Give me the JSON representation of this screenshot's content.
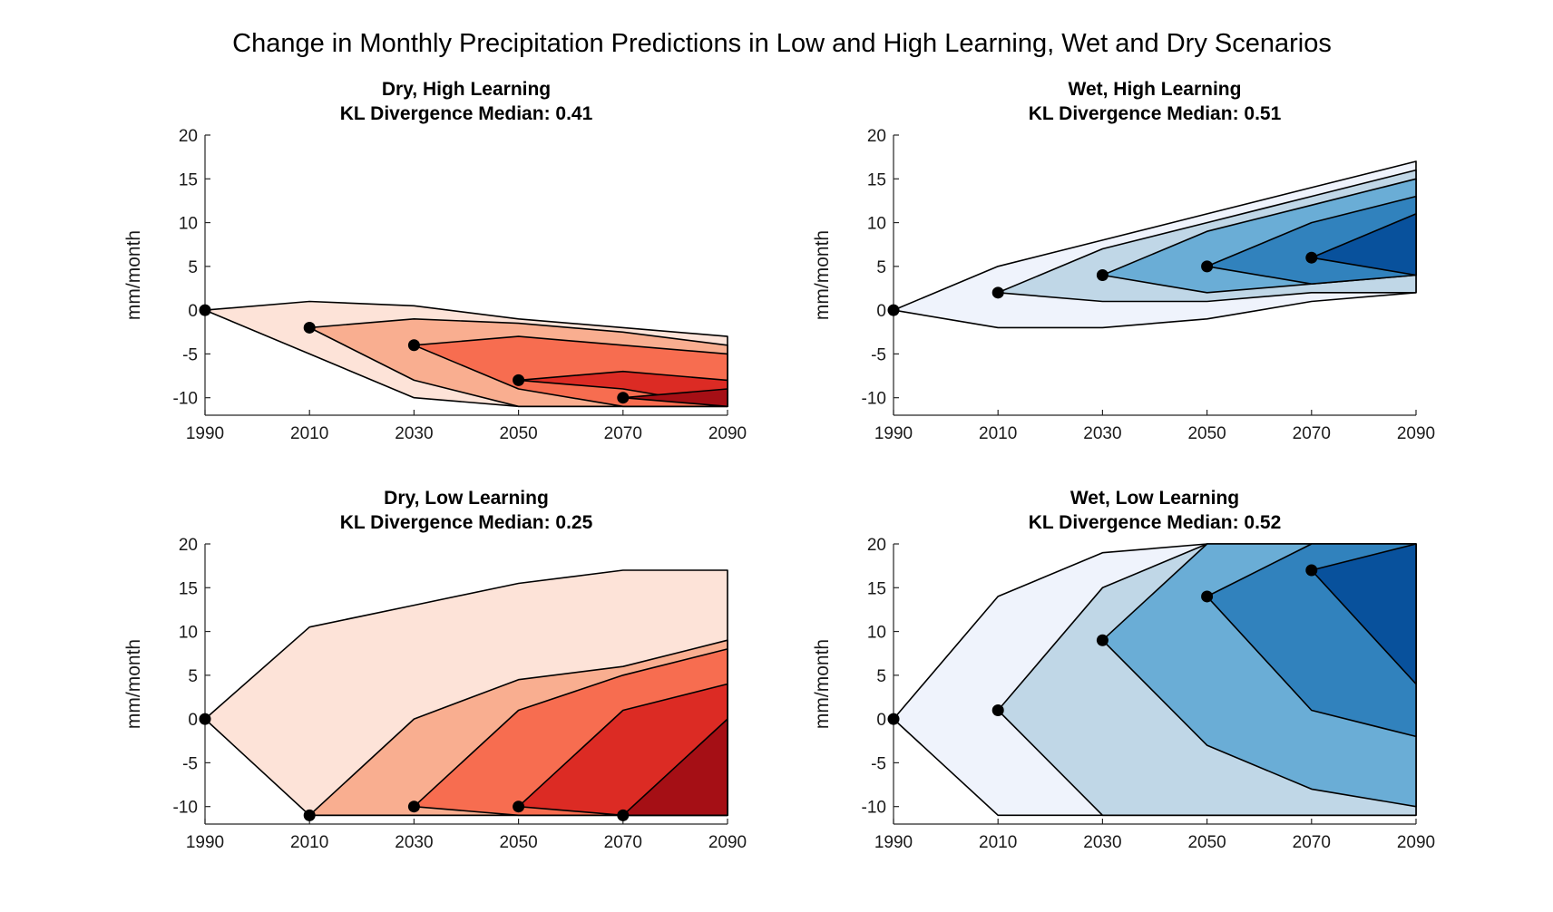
{
  "figure": {
    "title": "Change in Monthly Precipitation Predictions in Low and High Learning, Wet and Dry Scenarios"
  },
  "chart_data": [
    {
      "type": "area",
      "title": "Dry, High Learning",
      "subtitle": "KL Divergence Median: 0.41",
      "xlabel": "",
      "ylabel": "mm/month",
      "xlim": [
        1990,
        2090
      ],
      "ylim": [
        -12,
        20
      ],
      "xticks": [
        1990,
        2010,
        2030,
        2050,
        2070,
        2090
      ],
      "yticks": [
        -10,
        -5,
        0,
        5,
        10,
        15,
        20
      ],
      "colors": [
        "#fde3d8",
        "#f9ae90",
        "#f76d50",
        "#dc2b24",
        "#a50f15"
      ],
      "bands": [
        {
          "upper": [
            [
              1990,
              0
            ],
            [
              2010,
              1
            ],
            [
              2030,
              0.5
            ],
            [
              2050,
              -1
            ],
            [
              2070,
              -2
            ],
            [
              2090,
              -3
            ]
          ],
          "lower": [
            [
              1990,
              0
            ],
            [
              2010,
              -5
            ],
            [
              2030,
              -10
            ],
            [
              2050,
              -11
            ],
            [
              2070,
              -11
            ],
            [
              2090,
              -11
            ]
          ]
        },
        {
          "upper": [
            [
              2010,
              -2
            ],
            [
              2030,
              -1
            ],
            [
              2050,
              -1.5
            ],
            [
              2070,
              -2.5
            ],
            [
              2090,
              -4
            ]
          ],
          "lower": [
            [
              2010,
              -2
            ],
            [
              2030,
              -8
            ],
            [
              2050,
              -11
            ],
            [
              2070,
              -11
            ],
            [
              2090,
              -11
            ]
          ]
        },
        {
          "upper": [
            [
              2030,
              -4
            ],
            [
              2050,
              -3
            ],
            [
              2070,
              -4
            ],
            [
              2090,
              -5
            ]
          ],
          "lower": [
            [
              2030,
              -4
            ],
            [
              2050,
              -9
            ],
            [
              2070,
              -11
            ],
            [
              2090,
              -11
            ]
          ]
        },
        {
          "upper": [
            [
              2050,
              -8
            ],
            [
              2070,
              -7
            ],
            [
              2090,
              -8
            ]
          ],
          "lower": [
            [
              2050,
              -8
            ],
            [
              2070,
              -9
            ],
            [
              2090,
              -11
            ]
          ]
        },
        {
          "upper": [
            [
              2070,
              -10
            ],
            [
              2090,
              -9
            ]
          ],
          "lower": [
            [
              2070,
              -10
            ],
            [
              2090,
              -11
            ]
          ]
        }
      ],
      "nodes": [
        [
          1990,
          0
        ],
        [
          2010,
          -2
        ],
        [
          2030,
          -4
        ],
        [
          2050,
          -8
        ],
        [
          2070,
          -10
        ]
      ]
    },
    {
      "type": "area",
      "title": "Wet, High Learning",
      "subtitle": "KL Divergence Median: 0.51",
      "xlabel": "",
      "ylabel": "mm/month",
      "xlim": [
        1990,
        2090
      ],
      "ylim": [
        -12,
        20
      ],
      "xticks": [
        1990,
        2010,
        2030,
        2050,
        2070,
        2090
      ],
      "yticks": [
        -10,
        -5,
        0,
        5,
        10,
        15,
        20
      ],
      "colors": [
        "#eff3fc",
        "#c0d7e7",
        "#6aadd6",
        "#3182bd",
        "#08519c"
      ],
      "bands": [
        {
          "upper": [
            [
              1990,
              0
            ],
            [
              2010,
              5
            ],
            [
              2030,
              8
            ],
            [
              2050,
              11
            ],
            [
              2070,
              14
            ],
            [
              2090,
              17
            ]
          ],
          "lower": [
            [
              1990,
              0
            ],
            [
              2010,
              -2
            ],
            [
              2030,
              -2
            ],
            [
              2050,
              -1
            ],
            [
              2070,
              1
            ],
            [
              2090,
              2
            ]
          ]
        },
        {
          "upper": [
            [
              2010,
              2
            ],
            [
              2030,
              7
            ],
            [
              2050,
              10
            ],
            [
              2070,
              13
            ],
            [
              2090,
              16
            ]
          ],
          "lower": [
            [
              2010,
              2
            ],
            [
              2030,
              1
            ],
            [
              2050,
              1
            ],
            [
              2070,
              2
            ],
            [
              2090,
              2
            ]
          ]
        },
        {
          "upper": [
            [
              2030,
              4
            ],
            [
              2050,
              9
            ],
            [
              2070,
              12
            ],
            [
              2090,
              15
            ]
          ],
          "lower": [
            [
              2030,
              4
            ],
            [
              2050,
              2
            ],
            [
              2070,
              3
            ],
            [
              2090,
              4
            ]
          ]
        },
        {
          "upper": [
            [
              2050,
              5
            ],
            [
              2070,
              10
            ],
            [
              2090,
              13
            ]
          ],
          "lower": [
            [
              2050,
              5
            ],
            [
              2070,
              3
            ],
            [
              2090,
              4
            ]
          ]
        },
        {
          "upper": [
            [
              2070,
              6
            ],
            [
              2090,
              11
            ]
          ],
          "lower": [
            [
              2070,
              6
            ],
            [
              2090,
              4
            ]
          ]
        }
      ],
      "nodes": [
        [
          1990,
          0
        ],
        [
          2010,
          2
        ],
        [
          2030,
          4
        ],
        [
          2050,
          5
        ],
        [
          2070,
          6
        ]
      ]
    },
    {
      "type": "area",
      "title": "Dry, Low Learning",
      "subtitle": "KL Divergence Median: 0.25",
      "xlabel": "",
      "ylabel": "mm/month",
      "xlim": [
        1990,
        2090
      ],
      "ylim": [
        -12,
        20
      ],
      "xticks": [
        1990,
        2010,
        2030,
        2050,
        2070,
        2090
      ],
      "yticks": [
        -10,
        -5,
        0,
        5,
        10,
        15,
        20
      ],
      "colors": [
        "#fde3d8",
        "#f9ae90",
        "#f76d50",
        "#dc2b24",
        "#a50f15"
      ],
      "bands": [
        {
          "upper": [
            [
              1990,
              0
            ],
            [
              2010,
              10.5
            ],
            [
              2030,
              13
            ],
            [
              2050,
              15.5
            ],
            [
              2070,
              17
            ],
            [
              2090,
              17
            ]
          ],
          "lower": [
            [
              1990,
              0
            ],
            [
              2010,
              -11
            ],
            [
              2030,
              -11
            ],
            [
              2050,
              -11
            ],
            [
              2070,
              -11
            ],
            [
              2090,
              -11
            ]
          ]
        },
        {
          "upper": [
            [
              2010,
              -11
            ],
            [
              2030,
              0
            ],
            [
              2050,
              4.5
            ],
            [
              2070,
              6
            ],
            [
              2090,
              9
            ]
          ],
          "lower": [
            [
              2010,
              -11
            ],
            [
              2030,
              -11
            ],
            [
              2050,
              -11
            ],
            [
              2070,
              -11
            ],
            [
              2090,
              -11
            ]
          ]
        },
        {
          "upper": [
            [
              2030,
              -10
            ],
            [
              2050,
              1
            ],
            [
              2070,
              5
            ],
            [
              2090,
              8
            ]
          ],
          "lower": [
            [
              2030,
              -10
            ],
            [
              2050,
              -11
            ],
            [
              2070,
              -11
            ],
            [
              2090,
              -11
            ]
          ]
        },
        {
          "upper": [
            [
              2050,
              -10
            ],
            [
              2070,
              1
            ],
            [
              2090,
              4
            ]
          ],
          "lower": [
            [
              2050,
              -10
            ],
            [
              2070,
              -11
            ],
            [
              2090,
              -11
            ]
          ]
        },
        {
          "upper": [
            [
              2070,
              -11
            ],
            [
              2090,
              0
            ]
          ],
          "lower": [
            [
              2070,
              -11
            ],
            [
              2090,
              -11
            ]
          ]
        }
      ],
      "nodes": [
        [
          1990,
          0
        ],
        [
          2010,
          -11
        ],
        [
          2030,
          -10
        ],
        [
          2050,
          -10
        ],
        [
          2070,
          -11
        ]
      ]
    },
    {
      "type": "area",
      "title": "Wet, Low Learning",
      "subtitle": "KL Divergence Median: 0.52",
      "xlabel": "",
      "ylabel": "mm/month",
      "xlim": [
        1990,
        2090
      ],
      "ylim": [
        -12,
        20
      ],
      "xticks": [
        1990,
        2010,
        2030,
        2050,
        2070,
        2090
      ],
      "yticks": [
        -10,
        -5,
        0,
        5,
        10,
        15,
        20
      ],
      "colors": [
        "#eff3fc",
        "#c0d7e7",
        "#6aadd6",
        "#3182bd",
        "#08519c"
      ],
      "bands": [
        {
          "upper": [
            [
              1990,
              0
            ],
            [
              2010,
              14
            ],
            [
              2030,
              19
            ],
            [
              2050,
              20
            ],
            [
              2070,
              20
            ],
            [
              2090,
              20
            ]
          ],
          "lower": [
            [
              1990,
              0
            ],
            [
              2010,
              -11
            ],
            [
              2030,
              -11
            ],
            [
              2050,
              -11
            ],
            [
              2070,
              -11
            ],
            [
              2090,
              -11
            ]
          ]
        },
        {
          "upper": [
            [
              2010,
              1
            ],
            [
              2030,
              15
            ],
            [
              2050,
              20
            ],
            [
              2070,
              20
            ],
            [
              2090,
              20
            ]
          ],
          "lower": [
            [
              2010,
              1
            ],
            [
              2030,
              -11
            ],
            [
              2050,
              -11
            ],
            [
              2070,
              -11
            ],
            [
              2090,
              -11
            ]
          ]
        },
        {
          "upper": [
            [
              2030,
              9
            ],
            [
              2050,
              20
            ],
            [
              2070,
              20
            ],
            [
              2090,
              20
            ]
          ],
          "lower": [
            [
              2030,
              9
            ],
            [
              2050,
              -3
            ],
            [
              2070,
              -8
            ],
            [
              2090,
              -10
            ]
          ]
        },
        {
          "upper": [
            [
              2050,
              14
            ],
            [
              2070,
              20
            ],
            [
              2090,
              20
            ]
          ],
          "lower": [
            [
              2050,
              14
            ],
            [
              2070,
              1
            ],
            [
              2090,
              -2
            ]
          ]
        },
        {
          "upper": [
            [
              2070,
              17
            ],
            [
              2090,
              20
            ]
          ],
          "lower": [
            [
              2070,
              17
            ],
            [
              2090,
              4
            ]
          ]
        }
      ],
      "nodes": [
        [
          1990,
          0
        ],
        [
          2010,
          1
        ],
        [
          2030,
          9
        ],
        [
          2050,
          14
        ],
        [
          2070,
          17
        ]
      ]
    }
  ]
}
